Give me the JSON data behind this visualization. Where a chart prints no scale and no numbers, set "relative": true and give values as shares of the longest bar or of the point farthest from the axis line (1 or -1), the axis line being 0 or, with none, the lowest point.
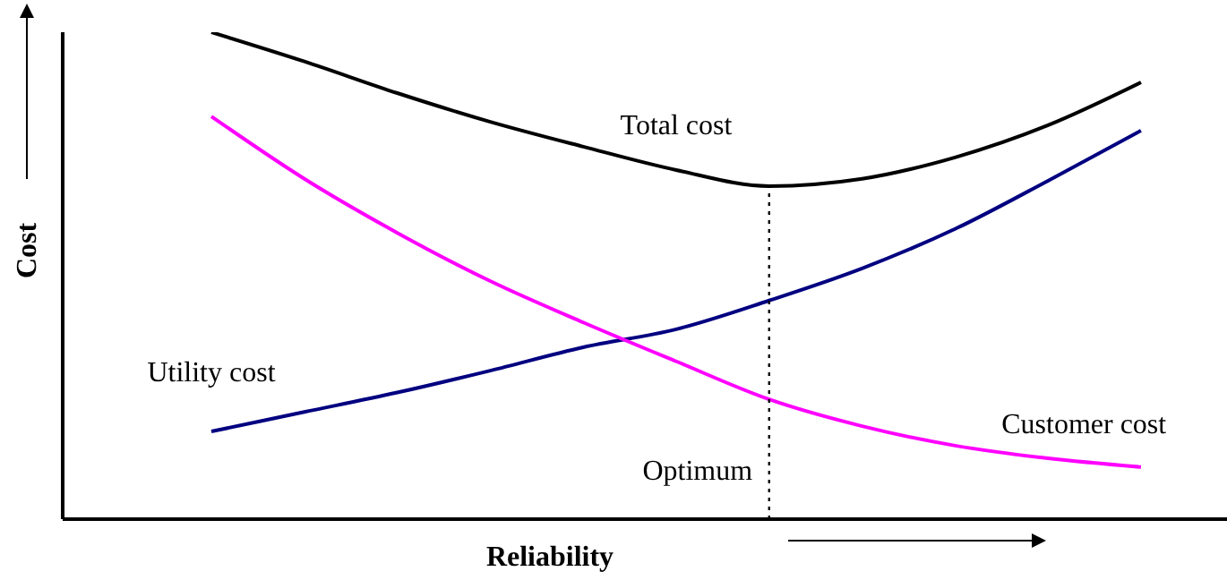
{
  "chart_data": {
    "type": "line",
    "relative": true,
    "xlabel": "Reliability",
    "ylabel": "Cost",
    "marker": "none",
    "line_style": "solid",
    "categories": [
      null,
      null,
      null,
      null,
      null,
      null,
      null,
      null,
      null,
      null,
      null
    ],
    "series": [
      {
        "name": "Total cost",
        "color": "#000000",
        "values": [
          1,
          0.94,
          0.875,
          0.816,
          0.765,
          0.717,
          0.684,
          0.699,
          0.743,
          0.809,
          0.897
        ]
      },
      {
        "name": "Utility cost",
        "color": "#000080",
        "values": [
          0.18,
          0.22,
          0.26,
          0.305,
          0.353,
          0.39,
          0.449,
          0.515,
          0.596,
          0.695,
          0.798
        ]
      },
      {
        "name": "Customer cost",
        "color": "#ff00ff",
        "values": [
          0.827,
          0.699,
          0.588,
          0.489,
          0.404,
          0.324,
          0.246,
          0.191,
          0.151,
          0.125,
          0.107
        ]
      }
    ],
    "annotations": [
      "Optimum"
    ]
  }
}
